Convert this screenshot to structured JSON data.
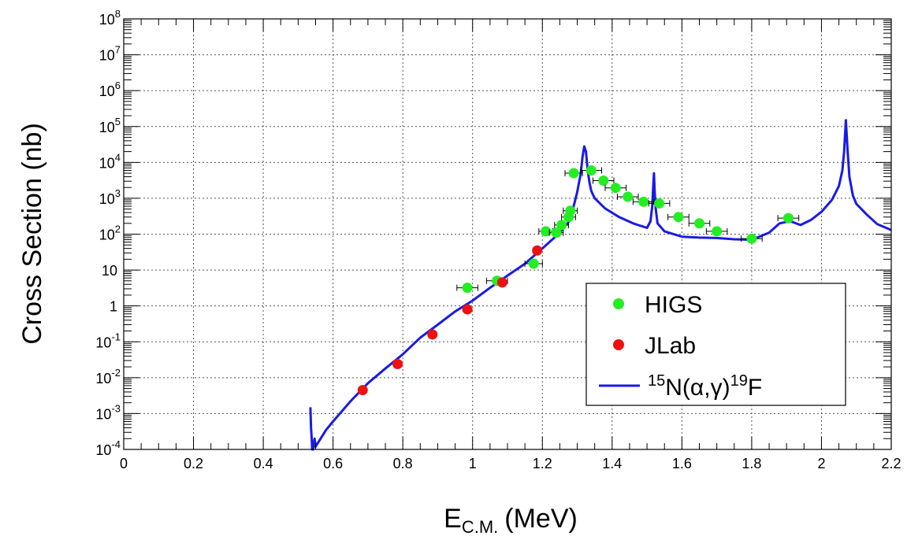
{
  "colors": {
    "higs": "#22ee22",
    "jlab": "#ee1111",
    "curve": "#1a1ae6",
    "grid": "#555555"
  },
  "chart_data": {
    "type": "scatter",
    "title": "",
    "xlabel": {
      "main": "E",
      "sub": "C.M.",
      "unit": "(MeV)"
    },
    "ylabel": "Cross Section (nb)",
    "x_range": [
      0,
      2.2
    ],
    "y_range": [
      0.0001,
      100000000
    ],
    "y_scale": "log",
    "grid": true,
    "legend_position": "bottom-right",
    "x_ticks": [
      "0",
      "0.2",
      "0.4",
      "0.6",
      "0.8",
      "1",
      "1.2",
      "1.4",
      "1.6",
      "1.8",
      "2",
      "2.2"
    ],
    "y_ticks": [
      {
        "value": 0.0001,
        "base": "10",
        "exp": "-4"
      },
      {
        "value": 0.001,
        "base": "10",
        "exp": "-3"
      },
      {
        "value": 0.01,
        "base": "10",
        "exp": "-2"
      },
      {
        "value": 0.1,
        "base": "10",
        "exp": "-1"
      },
      {
        "value": 1,
        "base": "1",
        "exp": ""
      },
      {
        "value": 10,
        "base": "10",
        "exp": ""
      },
      {
        "value": 100,
        "base": "10",
        "exp": "2"
      },
      {
        "value": 1000,
        "base": "10",
        "exp": "3"
      },
      {
        "value": 10000,
        "base": "10",
        "exp": "4"
      },
      {
        "value": 100000,
        "base": "10",
        "exp": "5"
      },
      {
        "value": 1000000,
        "base": "10",
        "exp": "6"
      },
      {
        "value": 10000000,
        "base": "10",
        "exp": "7"
      },
      {
        "value": 100000000,
        "base": "10",
        "exp": "8"
      }
    ],
    "legend": [
      {
        "type": "marker",
        "series": "higs",
        "label": "HIGS"
      },
      {
        "type": "marker",
        "series": "jlab",
        "label": "JLab"
      },
      {
        "type": "line",
        "series": "curve",
        "parts": [
          {
            "text": "15",
            "sup": true
          },
          {
            "text": "N(α,γ)",
            "sup": false
          },
          {
            "text": "19",
            "sup": true
          },
          {
            "text": "F",
            "sup": false
          }
        ]
      }
    ],
    "series": [
      {
        "id": "higs",
        "name": "HIGS",
        "type": "scatter",
        "x": [
          0.985,
          1.07,
          1.175,
          1.21,
          1.24,
          1.255,
          1.275,
          1.28,
          1.29,
          1.34,
          1.375,
          1.41,
          1.445,
          1.49,
          1.535,
          1.59,
          1.65,
          1.7,
          1.8,
          1.905
        ],
        "y": [
          3.2,
          5,
          15,
          120,
          110,
          180,
          300,
          450,
          5000,
          6000,
          3100,
          1950,
          1100,
          800,
          720,
          300,
          200,
          120,
          75,
          280
        ],
        "xerr": [
          0.03,
          0.03,
          0.025,
          0.02,
          0.02,
          0.02,
          0.02,
          0.02,
          0.025,
          0.03,
          0.03,
          0.03,
          0.03,
          0.03,
          0.03,
          0.03,
          0.03,
          0.03,
          0.03,
          0.03
        ]
      },
      {
        "id": "jlab",
        "name": "JLab",
        "type": "scatter",
        "x": [
          0.685,
          0.785,
          0.885,
          0.985,
          1.085,
          1.185
        ],
        "y": [
          0.0045,
          0.024,
          0.16,
          0.8,
          4.5,
          35
        ]
      },
      {
        "id": "curve",
        "name": "15N(α,γ)19F",
        "type": "line",
        "x": [
          0.535,
          0.537,
          0.539,
          0.54,
          0.543,
          0.547,
          0.55,
          0.58,
          0.6,
          0.65,
          0.7,
          0.75,
          0.8,
          0.85,
          0.9,
          0.95,
          1.0,
          1.05,
          1.1,
          1.15,
          1.2,
          1.25,
          1.28,
          1.3,
          1.31,
          1.315,
          1.32,
          1.325,
          1.33,
          1.335,
          1.34,
          1.35,
          1.38,
          1.42,
          1.46,
          1.5,
          1.51,
          1.515,
          1.518,
          1.52,
          1.522,
          1.525,
          1.53,
          1.55,
          1.6,
          1.65,
          1.7,
          1.75,
          1.8,
          1.85,
          1.88,
          1.91,
          1.94,
          1.97,
          2.0,
          2.03,
          2.05,
          2.06,
          2.065,
          2.07,
          2.075,
          2.08,
          2.09,
          2.1,
          2.13,
          2.16,
          2.2
        ],
        "y": [
          0.0015,
          0.0004,
          0.0002,
          0.0001,
          0.0001,
          0.0002,
          0.00012,
          0.00035,
          0.0006,
          0.0022,
          0.007,
          0.018,
          0.045,
          0.13,
          0.3,
          0.7,
          1.4,
          3.2,
          7,
          15,
          40,
          110,
          250,
          1500,
          5000,
          14000,
          28000,
          20000,
          6000,
          2800,
          1600,
          1000,
          520,
          300,
          200,
          150,
          230,
          600,
          2500,
          5000,
          1500,
          500,
          200,
          120,
          85,
          80,
          78,
          72,
          70,
          110,
          200,
          230,
          180,
          250,
          420,
          900,
          2200,
          6000,
          20000,
          150000,
          20000,
          4000,
          1200,
          700,
          350,
          190,
          130
        ]
      }
    ]
  }
}
